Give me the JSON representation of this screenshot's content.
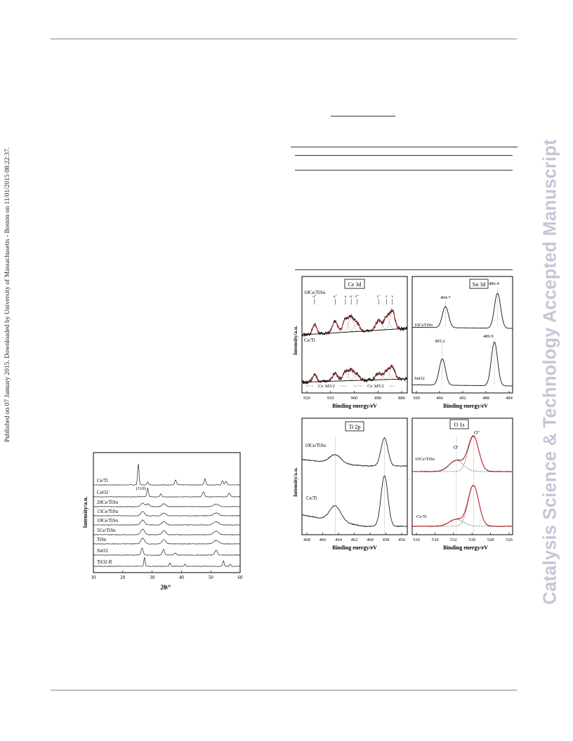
{
  "side_note": "Published on 07 January 2015. Downloaded by University of Massachusetts - Boston on 11/01/2015 08:22:37.",
  "watermark": "Catalysis Science & Technology Accepted Manuscript",
  "xrd": {
    "ylabel": "Intensity/a.u.",
    "xlabel": "2θ/°",
    "xticks": [
      "10",
      "20",
      "30",
      "40",
      "50",
      "60"
    ],
    "annotation": "(110)",
    "samples": [
      "Ce/Ti",
      "CeO2",
      "20Ce/TiSn",
      "15Ce/TiSn",
      "10Ce/TiSn",
      "5Ce/TiSn",
      "TiSn",
      "SnO2",
      "TiO2-R"
    ]
  },
  "xps": {
    "ylabel": "Intensity/a.u.",
    "xlabel": "Binding energy/eV",
    "ce3d": {
      "title": "Ce 3d",
      "samples": [
        "10Ce/TiSn",
        "Ce/Ti"
      ],
      "peak_labels": [
        "u‴",
        "u″",
        "u",
        "u'",
        "v‴",
        "v″",
        "v'",
        "v"
      ],
      "regions": [
        "Ce 3d3/2",
        "Ce 3d5/2"
      ],
      "xticks": [
        "920",
        "910",
        "900",
        "890",
        "880"
      ]
    },
    "sn3d": {
      "title": "Sn 3d",
      "samples": [
        "10CeTiSn",
        "SnO2"
      ],
      "peaks": [
        "494.7",
        "486.4",
        "495.2",
        "486.9"
      ],
      "xticks": [
        "500",
        "496",
        "492",
        "488",
        "484"
      ]
    },
    "ti2p": {
      "title": "Ti 2p",
      "samples": [
        "10Ce/TiSn",
        "Ce/Ti"
      ],
      "xticks": [
        "468",
        "466",
        "464",
        "462",
        "460",
        "458",
        "456"
      ]
    },
    "o1s": {
      "title": "O 1s",
      "samples": [
        "10Ce/TiSn",
        "Ce/Ti"
      ],
      "peak_labels": [
        "O'",
        "O\""
      ],
      "xticks": [
        "536",
        "534",
        "532",
        "530",
        "528",
        "526"
      ]
    }
  }
}
